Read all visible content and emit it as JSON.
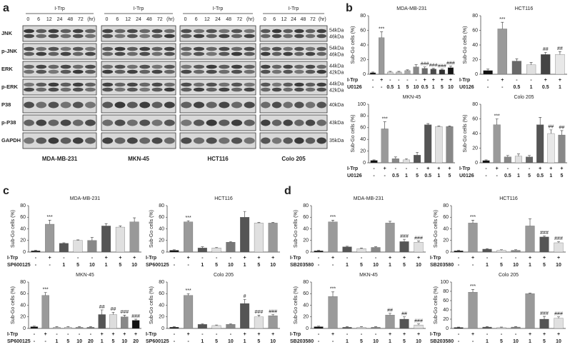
{
  "panel_labels": [
    "a",
    "b",
    "c",
    "d"
  ],
  "blot": {
    "treatment": "I-Trp",
    "times": [
      0,
      6,
      12,
      24,
      48,
      72
    ],
    "time_unit": "(hr)",
    "rows": [
      {
        "label": "JNK",
        "sizes": [
          "54kDa",
          "46kDa"
        ]
      },
      {
        "label": "p-JNK",
        "sizes": [
          "54kDa",
          "46kDa"
        ]
      },
      {
        "label": "ERK",
        "sizes": [
          "44kDa",
          "42kDa"
        ]
      },
      {
        "label": "p-ERK",
        "sizes": [
          "44kDa",
          "42kDa"
        ]
      },
      {
        "label": "P38",
        "sizes": [
          "40kDa"
        ]
      },
      {
        "label": "p-P38",
        "sizes": [
          "43kDa"
        ]
      },
      {
        "label": "GAPDH",
        "sizes": [
          "35kDa"
        ]
      }
    ],
    "cell_lines": [
      "MDA-MB-231",
      "MKN-45",
      "HCT116",
      "Colo 205"
    ]
  },
  "chart_data": [
    {
      "type": "bar",
      "title": "MDA-MB-231",
      "y_label": "Sub-Go cells (%)",
      "ylim": [
        0,
        80
      ],
      "yticks": [
        0,
        20,
        40,
        60,
        80
      ],
      "conditions": [
        {
          "name": "I-Trp",
          "labels": [
            "-",
            "+",
            "-",
            "-",
            "-",
            "-",
            "+",
            "+",
            "+",
            "+"
          ]
        },
        {
          "name": "U0126",
          "labels": [
            "-",
            "-",
            "0.5",
            "1",
            "5",
            "10",
            "0.5",
            "1",
            "5",
            "10"
          ]
        }
      ],
      "values": [
        2,
        50,
        3,
        3,
        5,
        10,
        8,
        7,
        6,
        9
      ],
      "errors": [
        1,
        8,
        1,
        1,
        1,
        3,
        2,
        1,
        1,
        2
      ],
      "significance": [
        null,
        "***",
        null,
        null,
        null,
        null,
        "###",
        "###",
        "###",
        "###"
      ],
      "colors": [
        "#111111",
        "#9a9a9a",
        "#d0d0d0",
        "#c0c0c0",
        "#a8a8a8",
        "#888888",
        "#6a6a6a",
        "#4a4a4a",
        "#303030",
        "#151515"
      ]
    },
    {
      "type": "bar",
      "title": "HCT116",
      "y_label": "Sub-Go cells (%)",
      "ylim": [
        0,
        80
      ],
      "yticks": [
        0,
        20,
        40,
        60,
        80
      ],
      "conditions": [
        {
          "name": "I-Trp",
          "labels": [
            "-",
            "+",
            "-",
            "-",
            "+",
            "+"
          ]
        },
        {
          "name": "U0126",
          "labels": [
            "-",
            "-",
            "0.5",
            "1",
            "0.5",
            "1"
          ]
        }
      ],
      "values": [
        5,
        62,
        18,
        13,
        27,
        27
      ],
      "errors": [
        2,
        9,
        3,
        3,
        3,
        4
      ],
      "significance": [
        null,
        "***",
        null,
        null,
        "##",
        "##"
      ],
      "colors": [
        "#111111",
        "#9a9a9a",
        "#6a6a6a",
        "#e0e0e0",
        "#444444",
        "#e8e8e8"
      ]
    },
    {
      "type": "bar",
      "title": "MKN-45",
      "y_label": "Sub-Go cells (%)",
      "ylim": [
        0,
        100
      ],
      "yticks": [
        0,
        20,
        40,
        60,
        80,
        100
      ],
      "conditions": [
        {
          "name": "I-Trp",
          "labels": [
            "-",
            "+",
            "-",
            "-",
            "-",
            "+",
            "+",
            "+"
          ]
        },
        {
          "name": "U0126",
          "labels": [
            "-",
            "-",
            "0.5",
            "1",
            "5",
            "0.5",
            "1",
            "5"
          ]
        }
      ],
      "values": [
        4,
        58,
        7,
        5,
        13,
        65,
        62,
        62
      ],
      "errors": [
        1,
        12,
        3,
        2,
        5,
        2,
        1,
        1
      ],
      "significance": [
        null,
        "***",
        null,
        null,
        null,
        null,
        null,
        null
      ],
      "colors": [
        "#111111",
        "#9a9a9a",
        "#888888",
        "#e0e0e0",
        "#555555",
        "#555555",
        "#e0e0e0",
        "#888888"
      ]
    },
    {
      "type": "bar",
      "title": "Colo 205",
      "y_label": "Sub-Go cells (%)",
      "ylim": [
        0,
        80
      ],
      "yticks": [
        0,
        20,
        40,
        60,
        80
      ],
      "conditions": [
        {
          "name": "I-Trp",
          "labels": [
            "-",
            "+",
            "-",
            "-",
            "-",
            "+",
            "+",
            "+"
          ]
        },
        {
          "name": "U0126",
          "labels": [
            "-",
            "-",
            "0.5",
            "1",
            "5",
            "0.5",
            "1",
            "5"
          ]
        }
      ],
      "values": [
        3,
        52,
        8,
        9,
        8,
        52,
        40,
        38
      ],
      "errors": [
        1,
        8,
        2,
        3,
        2,
        10,
        5,
        6
      ],
      "significance": [
        null,
        "***",
        null,
        null,
        null,
        null,
        "##",
        "##"
      ],
      "colors": [
        "#111111",
        "#9a9a9a",
        "#888888",
        "#e0e0e0",
        "#666666",
        "#555555",
        "#e8e8e8",
        "#888888"
      ]
    },
    {
      "type": "bar",
      "title": "MDA-MB-231",
      "y_label": "Sub-Go cells (%)",
      "ylim": [
        0,
        80
      ],
      "yticks": [
        0,
        20,
        40,
        60,
        80
      ],
      "conditions": [
        {
          "name": "I-Trp",
          "labels": [
            "-",
            "+",
            "-",
            "-",
            "-",
            "+",
            "+",
            "+"
          ]
        },
        {
          "name": "SP600125",
          "labels": [
            "-",
            "-",
            "1",
            "5",
            "10",
            "1",
            "5",
            "10"
          ]
        }
      ],
      "values": [
        2,
        48,
        15,
        20,
        20,
        45,
        43,
        52
      ],
      "errors": [
        1,
        7,
        1,
        1,
        5,
        4,
        2,
        7
      ],
      "significance": [
        null,
        "***",
        null,
        null,
        null,
        null,
        null,
        null
      ],
      "colors": [
        "#111111",
        "#9a9a9a",
        "#555555",
        "#e0e0e0",
        "#888888",
        "#555555",
        "#e0e0e0",
        "#999999"
      ]
    },
    {
      "type": "bar",
      "title": "HCT116",
      "y_label": "Sub-Go cells (%)",
      "ylim": [
        0,
        80
      ],
      "yticks": [
        0,
        20,
        40,
        60,
        80
      ],
      "conditions": [
        {
          "name": "I-Trp",
          "labels": [
            "-",
            "+",
            "-",
            "-",
            "-",
            "+",
            "+",
            "+"
          ]
        },
        {
          "name": "SP600125",
          "labels": [
            "-",
            "-",
            "1",
            "5",
            "10",
            "1",
            "5",
            "10"
          ]
        }
      ],
      "values": [
        3,
        52,
        7,
        7,
        17,
        60,
        50,
        50
      ],
      "errors": [
        1,
        2,
        2,
        1,
        1,
        10,
        1,
        1
      ],
      "significance": [
        null,
        "***",
        null,
        null,
        null,
        null,
        null,
        null
      ],
      "colors": [
        "#111111",
        "#9a9a9a",
        "#555555",
        "#e0e0e0",
        "#777777",
        "#555555",
        "#e0e0e0",
        "#999999"
      ]
    },
    {
      "type": "bar",
      "title": "MKN-45",
      "y_label": "Sub-Go cells (%)",
      "ylim": [
        0,
        80
      ],
      "yticks": [
        0,
        20,
        40,
        60,
        80
      ],
      "conditions": [
        {
          "name": "I-Trp",
          "labels": [
            "-",
            "+",
            "-",
            "-",
            "-",
            "-",
            "+",
            "+",
            "+",
            "+"
          ]
        },
        {
          "name": "SP600125",
          "labels": [
            "-",
            "-",
            "1",
            "5",
            "10",
            "20",
            "1",
            "5",
            "10",
            "20"
          ]
        }
      ],
      "values": [
        3,
        57,
        2,
        2,
        2,
        2,
        24,
        24,
        20,
        14
      ],
      "errors": [
        1,
        5,
        1,
        1,
        1,
        1,
        8,
        4,
        3,
        2
      ],
      "significance": [
        null,
        "***",
        null,
        null,
        null,
        null,
        "##",
        "##",
        "###",
        "###"
      ],
      "colors": [
        "#111111",
        "#9a9a9a",
        "#bbbbbb",
        "#d0d0d0",
        "#999999",
        "#777777",
        "#555555",
        "#dddddd",
        "#888888",
        "#111111"
      ]
    },
    {
      "type": "bar",
      "title": "Colo 205",
      "y_label": "Sub-Go cells (%)",
      "ylim": [
        0,
        80
      ],
      "yticks": [
        0,
        20,
        40,
        60,
        80
      ],
      "conditions": [
        {
          "name": "I-Trp",
          "labels": [
            "-",
            "+",
            "-",
            "-",
            "-",
            "+",
            "+",
            "+"
          ]
        },
        {
          "name": "SP600125",
          "labels": [
            "-",
            "-",
            "1",
            "5",
            "10",
            "1",
            "5",
            "10"
          ]
        }
      ],
      "values": [
        2,
        57,
        7,
        5,
        7,
        43,
        20,
        22
      ],
      "errors": [
        1,
        3,
        1,
        1,
        1,
        7,
        3,
        2
      ],
      "significance": [
        null,
        "***",
        null,
        null,
        null,
        "#",
        "###",
        "###"
      ],
      "colors": [
        "#111111",
        "#9a9a9a",
        "#555555",
        "#e0e0e0",
        "#888888",
        "#555555",
        "#e0e0e0",
        "#999999"
      ]
    },
    {
      "type": "bar",
      "title": "MDA-MB-231",
      "y_label": "Sub-Go cells (%)",
      "ylim": [
        0,
        80
      ],
      "yticks": [
        0,
        20,
        40,
        60,
        80
      ],
      "conditions": [
        {
          "name": "I-Trp",
          "labels": [
            "-",
            "+",
            "-",
            "-",
            "-",
            "+",
            "+",
            "+"
          ]
        },
        {
          "name": "SB203580",
          "labels": [
            "-",
            "-",
            "1",
            "5",
            "10",
            "1",
            "5",
            "10"
          ]
        }
      ],
      "values": [
        2,
        52,
        9,
        6,
        8,
        50,
        18,
        17
      ],
      "errors": [
        1,
        3,
        1,
        1,
        1,
        3,
        4,
        2
      ],
      "significance": [
        null,
        "***",
        null,
        null,
        null,
        null,
        "###",
        "###"
      ],
      "colors": [
        "#111111",
        "#9a9a9a",
        "#555555",
        "#e0e0e0",
        "#888888",
        "#999999",
        "#555555",
        "#e0e0e0"
      ]
    },
    {
      "type": "bar",
      "title": "HCT116",
      "y_label": "Sub-Go cells (%)",
      "ylim": [
        0,
        80
      ],
      "yticks": [
        0,
        20,
        40,
        60,
        80
      ],
      "conditions": [
        {
          "name": "I-Trp",
          "labels": [
            "-",
            "+",
            "-",
            "-",
            "-",
            "+",
            "+",
            "+"
          ]
        },
        {
          "name": "SB203580",
          "labels": [
            "-",
            "-",
            "1",
            "5",
            "10",
            "1",
            "5",
            "10"
          ]
        }
      ],
      "values": [
        2,
        50,
        5,
        3,
        3,
        45,
        26,
        16
      ],
      "errors": [
        1,
        5,
        1,
        1,
        1,
        12,
        2,
        2
      ],
      "significance": [
        null,
        "***",
        null,
        null,
        null,
        null,
        "###",
        "###"
      ],
      "colors": [
        "#111111",
        "#9a9a9a",
        "#555555",
        "#e0e0e0",
        "#888888",
        "#999999",
        "#555555",
        "#e0e0e0"
      ]
    },
    {
      "type": "bar",
      "title": "MKN-45",
      "y_label": "Sub-Go cells (%)",
      "ylim": [
        0,
        80
      ],
      "yticks": [
        0,
        20,
        40,
        60,
        80
      ],
      "conditions": [
        {
          "name": "I-Trp",
          "labels": [
            "-",
            "+",
            "-",
            "-",
            "-",
            "+",
            "+",
            "+"
          ]
        },
        {
          "name": "SB203580",
          "labels": [
            "-",
            "-",
            "1",
            "5",
            "10",
            "1",
            "5",
            "10"
          ]
        }
      ],
      "values": [
        3,
        55,
        2,
        2,
        2,
        23,
        16,
        6
      ],
      "errors": [
        1,
        8,
        1,
        1,
        1,
        3,
        4,
        2
      ],
      "significance": [
        null,
        "***",
        null,
        null,
        null,
        "##",
        "##",
        "###"
      ],
      "colors": [
        "#111111",
        "#9a9a9a",
        "#555555",
        "#e0e0e0",
        "#888888",
        "#999999",
        "#555555",
        "#e0e0e0"
      ]
    },
    {
      "type": "bar",
      "title": "Colo 205",
      "y_label": "Sub-Go cells (%)",
      "ylim": [
        0,
        100
      ],
      "yticks": [
        0,
        20,
        40,
        60,
        80,
        100
      ],
      "conditions": [
        {
          "name": "I-Trp",
          "labels": [
            "-",
            "+",
            "-",
            "-",
            "-",
            "+",
            "+",
            "+"
          ]
        },
        {
          "name": "SB203580",
          "labels": [
            "-",
            "-",
            "1",
            "5",
            "10",
            "1",
            "5",
            "10"
          ]
        }
      ],
      "values": [
        2,
        78,
        3,
        2,
        3,
        75,
        20,
        22
      ],
      "errors": [
        1,
        6,
        1,
        1,
        1,
        1,
        6,
        3
      ],
      "significance": [
        null,
        "***",
        null,
        null,
        null,
        null,
        "###",
        "###"
      ],
      "colors": [
        "#111111",
        "#9a9a9a",
        "#555555",
        "#e0e0e0",
        "#888888",
        "#999999",
        "#555555",
        "#e0e0e0"
      ]
    }
  ]
}
